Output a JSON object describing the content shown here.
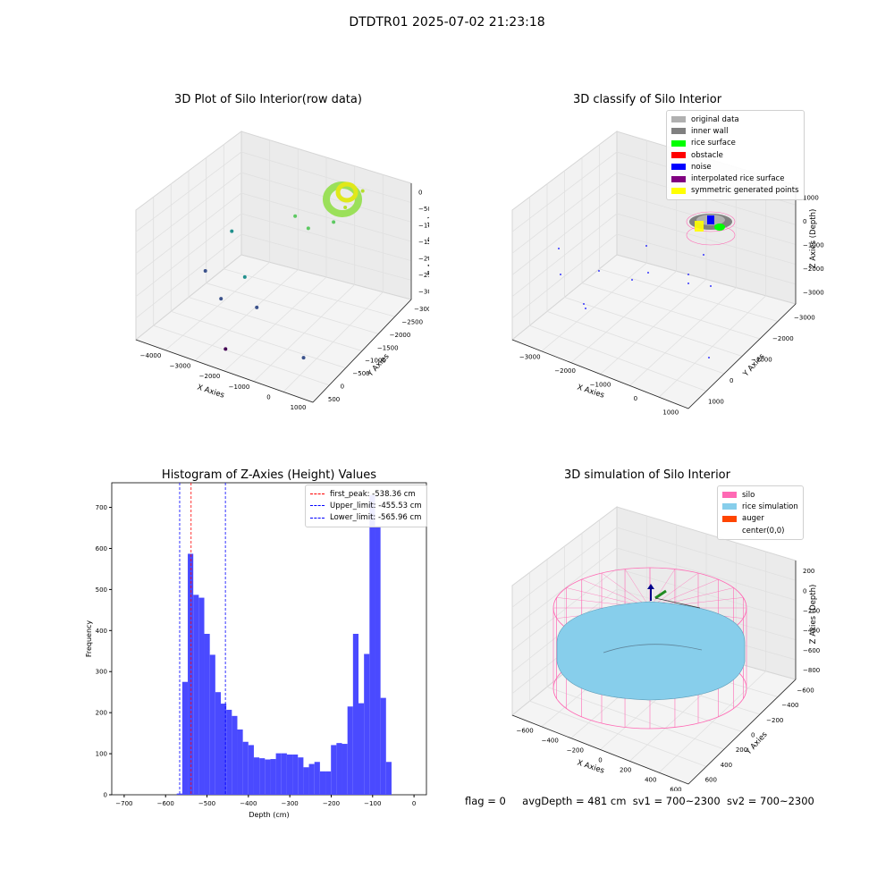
{
  "figure": {
    "title": "DTDTR01 2025-07-02 21:23:18",
    "status": {
      "flag": "flag = 0",
      "avg_depth": "avgDepth = 481 cm",
      "sv1": "sv1 = 700~2300",
      "sv2": "sv2 = 700~2300"
    }
  },
  "colors": {
    "original_data": "#b0b0b0",
    "inner_wall": "#808080",
    "rice_surface": "#00ff00",
    "obstacle": "#ff0000",
    "noise": "#0000ff",
    "interpolated_rice_surface": "#800080",
    "symmetric_generated_points": "#ffff00",
    "silo": "#ff69b4",
    "rice_simulation": "#87ceeb",
    "auger": "#ff4500",
    "histogram_bar": "#4a4aff",
    "first_peak": "#ff0000",
    "limits": "#0000ff"
  },
  "chart_data": [
    {
      "type": "scatter",
      "kind": "3d",
      "title": "3D Plot of Silo Interior(row data)",
      "xlabel": "X Axies",
      "ylabel": "Y Axies",
      "zlabel": "Z Axies (Depth)",
      "x_ticks": [
        "−4000",
        "−3000",
        "−2000",
        "−1000",
        "0",
        "1000"
      ],
      "y_ticks": [
        "500",
        "0",
        "−500",
        "−1000",
        "−1500",
        "−2000",
        "−2500",
        "−3000"
      ],
      "z_ticks": [
        "0",
        "−500",
        "−1000",
        "−1500",
        "−2000",
        "−2500",
        "−3000"
      ],
      "colormap": "viridis",
      "points": [
        {
          "x": 300,
          "y": 200,
          "z": -400
        },
        {
          "x": 0,
          "y": -100,
          "z": -700
        },
        {
          "x": -200,
          "y": -300,
          "z": -1000
        },
        {
          "x": -1500,
          "y": -200,
          "z": -1300
        },
        {
          "x": -1000,
          "y": -300,
          "z": -1400
        },
        {
          "x": -3000,
          "y": -800,
          "z": -1700
        },
        {
          "x": -2000,
          "y": -1500,
          "z": -2100
        },
        {
          "x": -2500,
          "y": -1800,
          "z": -2600
        },
        {
          "x": -3500,
          "y": -1200,
          "z": -2600
        },
        {
          "x": 700,
          "y": -2500,
          "z": -2700
        },
        {
          "x": -1200,
          "y": -2000,
          "z": -2300
        },
        {
          "x": -1600,
          "y": -2700,
          "z": -3000
        }
      ]
    },
    {
      "type": "scatter",
      "kind": "3d",
      "title": "3D classify of Silo Interior",
      "xlabel": "X Axies",
      "ylabel": "Y Axies",
      "zlabel": "Z Axies (Depth)",
      "x_ticks": [
        "−3000",
        "−2000",
        "−1000",
        "0",
        "1000"
      ],
      "y_ticks": [
        "1000",
        "0",
        "−1000",
        "−2000",
        "−3000"
      ],
      "z_ticks": [
        "1000",
        "0",
        "−1000",
        "−2000",
        "−3000"
      ],
      "legend": {
        "position": "top-right",
        "entries": [
          {
            "label": "original data",
            "color": "#b0b0b0"
          },
          {
            "label": "inner wall",
            "color": "#808080"
          },
          {
            "label": "rice surface",
            "color": "#00ff00"
          },
          {
            "label": "obstacle",
            "color": "#ff0000"
          },
          {
            "label": "noise",
            "color": "#0000ff"
          },
          {
            "label": "interpolated rice surface",
            "color": "#800080"
          },
          {
            "label": "symmetric generated points",
            "color": "#ffff00"
          }
        ]
      }
    },
    {
      "type": "bar",
      "title": "Histogram of Z-Axies (Height) Values",
      "xlabel": "Depth (cm)",
      "ylabel": "Frequency",
      "xlim": [
        -730,
        30
      ],
      "ylim": [
        0,
        760
      ],
      "x_ticks": [
        "−700",
        "−600",
        "−500",
        "−400",
        "−300",
        "−200",
        "−100",
        "0"
      ],
      "y_ticks": [
        "0",
        "100",
        "200",
        "300",
        "400",
        "500",
        "600",
        "700"
      ],
      "bin_width": 13.3,
      "bin_start": -573,
      "values": [
        3,
        275,
        587,
        487,
        480,
        392,
        341,
        250,
        222,
        207,
        192,
        159,
        129,
        121,
        91,
        89,
        86,
        87,
        101,
        101,
        98,
        98,
        91,
        67,
        75,
        80,
        57,
        57,
        121,
        126,
        124,
        215,
        392,
        223,
        343,
        730,
        655,
        236,
        80
      ],
      "lines": [
        {
          "name": "first_peak: -538.36 cm",
          "x": -538.36,
          "color": "#ff0000"
        },
        {
          "name": "Upper_limit: -455.53 cm",
          "x": -455.53,
          "color": "#0000ff"
        },
        {
          "name": "Lower_limit: -565.96 cm",
          "x": -565.96,
          "color": "#0000ff"
        }
      ],
      "legend_position": "top-right"
    },
    {
      "type": "area",
      "kind": "3d",
      "title": "3D simulation of Silo Interior",
      "xlabel": "X Axies",
      "ylabel": "Y Axies",
      "zlabel": "Z Axies (Depth)",
      "x_ticks": [
        "−600",
        "−400",
        "−200",
        "0",
        "200",
        "400",
        "600"
      ],
      "y_ticks": [
        "600",
        "400",
        "200",
        "0",
        "−200",
        "−400",
        "−600"
      ],
      "z_ticks": [
        "200",
        "0",
        "−200",
        "−400",
        "−600",
        "−800"
      ],
      "legend": {
        "position": "top-right",
        "entries": [
          {
            "label": "silo",
            "color": "#ff69b4"
          },
          {
            "label": "rice simulation",
            "color": "#87ceeb"
          },
          {
            "label": "auger",
            "color": "#ff4500"
          },
          {
            "label": "center(0,0)",
            "color": ""
          }
        ]
      }
    }
  ]
}
